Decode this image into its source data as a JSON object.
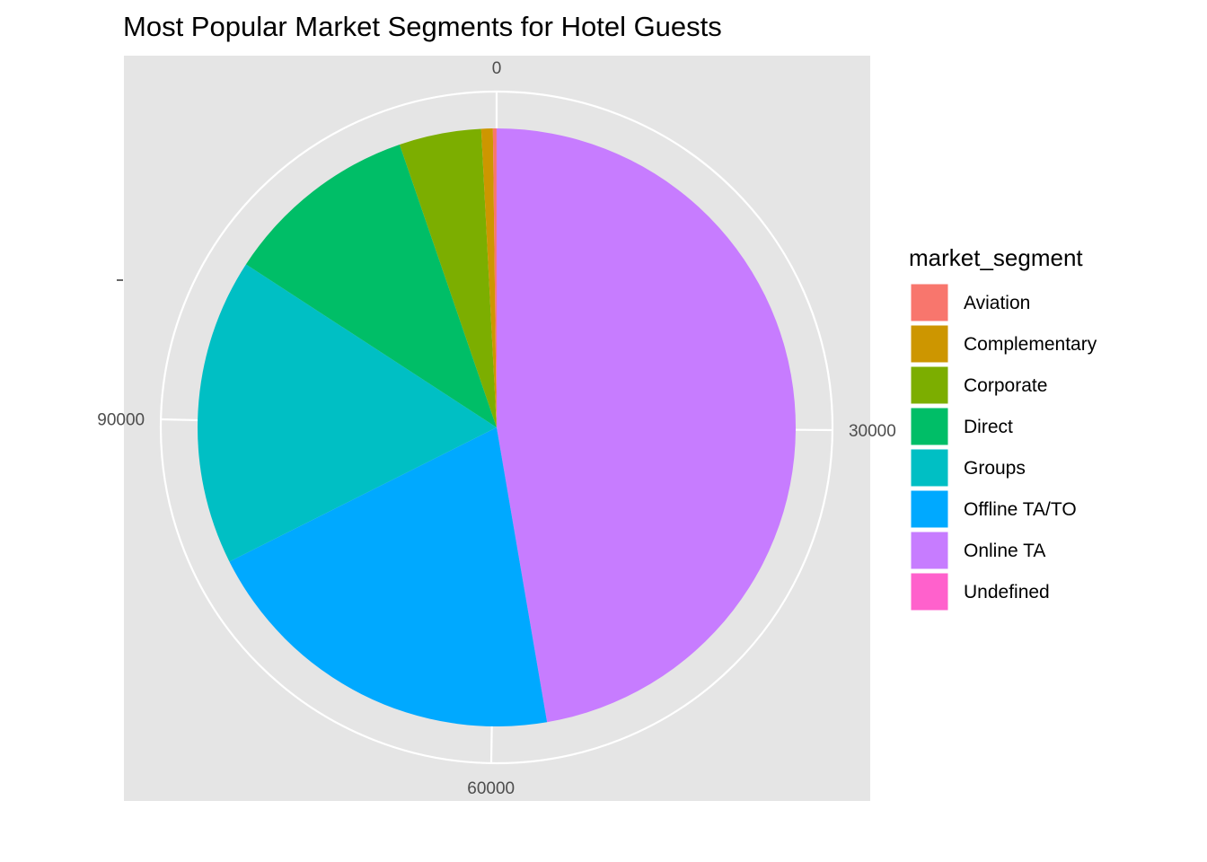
{
  "chart_data": {
    "type": "pie",
    "title": "Most Popular Market Segments for Hotel Guests",
    "xlabel": "",
    "ylabel": "",
    "theta_axis": {
      "ticks": [
        0,
        30000,
        60000,
        90000
      ],
      "tick_labels": [
        "0",
        "30000",
        "60000",
        "90000"
      ],
      "max": 119390,
      "direction": "clockwise",
      "start": "top"
    },
    "grid": true,
    "legend": {
      "title": "market_segment",
      "position": "right"
    },
    "slices": [
      {
        "label": "Aviation",
        "value": 237,
        "color": "#F8766D"
      },
      {
        "label": "Complementary",
        "value": 743,
        "color": "#CD9600"
      },
      {
        "label": "Corporate",
        "value": 5295,
        "color": "#7CAE00"
      },
      {
        "label": "Direct",
        "value": 12606,
        "color": "#00BE67"
      },
      {
        "label": "Groups",
        "value": 19811,
        "color": "#00BFC4"
      },
      {
        "label": "Offline TA/TO",
        "value": 24219,
        "color": "#00A9FF"
      },
      {
        "label": "Online TA",
        "value": 56477,
        "color": "#C77CFF"
      },
      {
        "label": "Undefined",
        "value": 2,
        "color": "#FF61CC"
      }
    ],
    "stack_order": [
      "Online TA",
      "Offline TA/TO",
      "Groups",
      "Direct",
      "Corporate",
      "Complementary",
      "Aviation",
      "Undefined"
    ],
    "panel_background": "#E5E5E5",
    "grid_color": "#FFFFFF"
  }
}
